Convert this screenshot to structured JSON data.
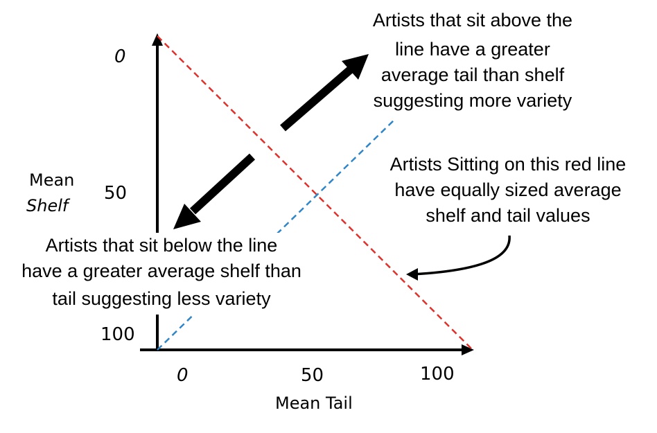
{
  "axes": {
    "y_title_line1": "Mean",
    "y_title_line2": "Shelf",
    "x_title": "Mean Tail",
    "y_ticks": [
      "0",
      "50",
      "100"
    ],
    "x_ticks": [
      "0",
      "50",
      "100"
    ]
  },
  "annotations": {
    "above": [
      "Artists that sit above the",
      "line have a greater",
      "average tail than shelf",
      "suggesting more variety"
    ],
    "below": [
      "Artists that sit below the line",
      "have a greater average shelf than",
      "tail suggesting less variety"
    ],
    "red_line": [
      "Artists Sitting on this red line",
      "have equally sized average",
      "shelf and tail values"
    ]
  },
  "colors": {
    "axis": "#000000",
    "red_line": "#e0302a",
    "blue_line": "#2e86c8",
    "arrow": "#000000"
  }
}
